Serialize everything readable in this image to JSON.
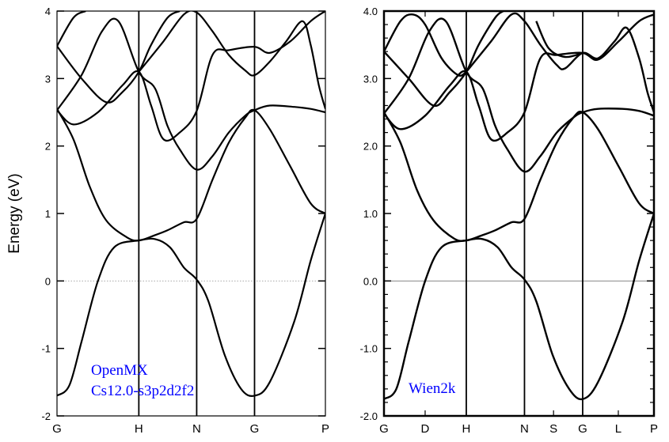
{
  "colors": {
    "line": "#000000",
    "annotation": "#0000ff",
    "zero_line_left": "#aaaaaa",
    "zero_line_right": "#888888"
  },
  "ylabel": "Energy (eV)",
  "chart_data": [
    {
      "type": "line",
      "ylabel": "Energy (eV)",
      "ylim": [
        -2,
        4
      ],
      "yticks": [
        "-2",
        "-1",
        "0",
        "1",
        "2",
        "3",
        "4"
      ],
      "kpoints": [
        {
          "label": "G",
          "x": 0
        },
        {
          "label": "H",
          "x": 1
        },
        {
          "label": "N",
          "x": 1.707
        },
        {
          "label": "G",
          "x": 2.414
        },
        {
          "label": "P",
          "x": 3.28
        }
      ],
      "annotation": [
        "OpenMX",
        "Cs12.0-s3p2d2f2"
      ],
      "series": [
        {
          "values": [
            [
              0,
              -1.7
            ],
            [
              0.15,
              -1.55
            ],
            [
              0.3,
              -0.9
            ],
            [
              0.5,
              0.0
            ],
            [
              0.7,
              0.5
            ],
            [
              1.0,
              0.6
            ],
            [
              1.2,
              0.62
            ],
            [
              1.38,
              0.5
            ],
            [
              1.55,
              0.2
            ],
            [
              1.707,
              0.02
            ],
            [
              1.85,
              -0.3
            ],
            [
              2.05,
              -1.1
            ],
            [
              2.25,
              -1.6
            ],
            [
              2.414,
              -1.7
            ],
            [
              2.6,
              -1.5
            ],
            [
              2.9,
              -0.6
            ],
            [
              3.1,
              0.3
            ],
            [
              3.28,
              1.0
            ]
          ]
        },
        {
          "values": [
            [
              0,
              2.55
            ],
            [
              0.2,
              2.1
            ],
            [
              0.4,
              1.4
            ],
            [
              0.6,
              0.9
            ],
            [
              0.85,
              0.65
            ],
            [
              1.0,
              0.6
            ],
            [
              1.2,
              0.68
            ],
            [
              1.35,
              0.75
            ],
            [
              1.55,
              0.87
            ],
            [
              1.707,
              0.92
            ],
            [
              1.9,
              1.5
            ],
            [
              2.1,
              2.05
            ],
            [
              2.3,
              2.42
            ],
            [
              2.414,
              2.53
            ],
            [
              2.6,
              2.25
            ],
            [
              2.85,
              1.7
            ],
            [
              3.1,
              1.15
            ],
            [
              3.28,
              1.0
            ]
          ]
        },
        {
          "values": [
            [
              0,
              2.53
            ],
            [
              0.2,
              2.32
            ],
            [
              0.5,
              2.5
            ],
            [
              0.8,
              2.9
            ],
            [
              1.0,
              3.1
            ],
            [
              1.15,
              2.6
            ],
            [
              1.3,
              2.1
            ],
            [
              1.5,
              2.2
            ],
            [
              1.707,
              2.52
            ],
            [
              1.9,
              3.35
            ],
            [
              2.1,
              3.42
            ],
            [
              2.414,
              3.47
            ],
            [
              2.6,
              3.38
            ],
            [
              2.85,
              3.55
            ],
            [
              3.1,
              3.85
            ],
            [
              3.28,
              4.0
            ]
          ]
        },
        {
          "values": [
            [
              0,
              2.53
            ],
            [
              0.3,
              3.05
            ],
            [
              0.55,
              3.7
            ],
            [
              0.75,
              3.85
            ],
            [
              1.0,
              3.1
            ],
            [
              1.2,
              2.85
            ],
            [
              1.35,
              2.3
            ],
            [
              1.5,
              1.95
            ],
            [
              1.707,
              1.65
            ],
            [
              1.9,
              1.85
            ],
            [
              2.1,
              2.2
            ],
            [
              2.3,
              2.45
            ],
            [
              2.414,
              2.53
            ],
            [
              2.6,
              2.6
            ],
            [
              2.9,
              2.58
            ],
            [
              3.1,
              2.55
            ],
            [
              3.28,
              2.5
            ]
          ]
        },
        {
          "values": [
            [
              0,
              3.48
            ],
            [
              0.3,
              3.0
            ],
            [
              0.6,
              2.65
            ],
            [
              0.8,
              2.8
            ],
            [
              1.0,
              3.1
            ],
            [
              1.15,
              3.5
            ],
            [
              1.35,
              3.9
            ],
            [
              1.5,
              4.0
            ]
          ]
        },
        {
          "values": [
            [
              0,
              3.48
            ],
            [
              0.2,
              3.9
            ],
            [
              0.35,
              4.0
            ]
          ]
        },
        {
          "values": [
            [
              1.0,
              3.1
            ],
            [
              1.3,
              3.55
            ],
            [
              1.55,
              3.95
            ],
            [
              1.707,
              3.98
            ],
            [
              1.9,
              3.7
            ],
            [
              2.1,
              3.35
            ],
            [
              2.3,
              3.12
            ],
            [
              2.414,
              3.05
            ],
            [
              2.6,
              3.25
            ],
            [
              2.8,
              3.55
            ],
            [
              3.0,
              3.85
            ],
            [
              3.1,
              3.5
            ],
            [
              3.2,
              2.9
            ],
            [
              3.28,
              2.55
            ]
          ]
        }
      ]
    },
    {
      "type": "line",
      "ylim": [
        -2.0,
        4.0
      ],
      "yticks": [
        "-2.0",
        "-1.0",
        "0.0",
        "1.0",
        "2.0",
        "3.0",
        "4.0"
      ],
      "kpoints": [
        {
          "label": "G",
          "x": 0
        },
        {
          "label": "D",
          "x": 0.5
        },
        {
          "label": "H",
          "x": 1
        },
        {
          "label": "N",
          "x": 1.707
        },
        {
          "label": "S",
          "x": 2.06
        },
        {
          "label": "G",
          "x": 2.414
        },
        {
          "label": "L",
          "x": 2.847
        },
        {
          "label": "P",
          "x": 3.28
        }
      ],
      "annotation": [
        "Wien2k"
      ],
      "series": [
        {
          "values": [
            [
              0,
              -1.75
            ],
            [
              0.15,
              -1.6
            ],
            [
              0.3,
              -0.9
            ],
            [
              0.5,
              0.0
            ],
            [
              0.7,
              0.5
            ],
            [
              1.0,
              0.6
            ],
            [
              1.2,
              0.62
            ],
            [
              1.38,
              0.5
            ],
            [
              1.55,
              0.2
            ],
            [
              1.707,
              0.02
            ],
            [
              1.85,
              -0.3
            ],
            [
              2.05,
              -1.1
            ],
            [
              2.25,
              -1.6
            ],
            [
              2.414,
              -1.75
            ],
            [
              2.6,
              -1.5
            ],
            [
              2.9,
              -0.6
            ],
            [
              3.1,
              0.3
            ],
            [
              3.28,
              1.0
            ]
          ]
        },
        {
          "values": [
            [
              0,
              2.5
            ],
            [
              0.2,
              2.05
            ],
            [
              0.4,
              1.35
            ],
            [
              0.6,
              0.9
            ],
            [
              0.85,
              0.63
            ],
            [
              1.0,
              0.6
            ],
            [
              1.2,
              0.68
            ],
            [
              1.35,
              0.75
            ],
            [
              1.55,
              0.87
            ],
            [
              1.707,
              0.92
            ],
            [
              1.9,
              1.5
            ],
            [
              2.1,
              2.05
            ],
            [
              2.3,
              2.42
            ],
            [
              2.414,
              2.5
            ],
            [
              2.6,
              2.25
            ],
            [
              2.85,
              1.7
            ],
            [
              3.1,
              1.15
            ],
            [
              3.28,
              1.0
            ]
          ]
        },
        {
          "values": [
            [
              0,
              2.48
            ],
            [
              0.2,
              2.25
            ],
            [
              0.5,
              2.45
            ],
            [
              0.8,
              2.9
            ],
            [
              1.0,
              3.1
            ],
            [
              1.15,
              2.6
            ],
            [
              1.3,
              2.1
            ],
            [
              1.5,
              2.2
            ],
            [
              1.707,
              2.5
            ],
            [
              1.9,
              3.3
            ],
            [
              2.1,
              3.35
            ],
            [
              2.414,
              3.38
            ],
            [
              2.6,
              3.28
            ],
            [
              2.85,
              3.55
            ],
            [
              3.1,
              3.85
            ],
            [
              3.28,
              3.95
            ]
          ]
        },
        {
          "values": [
            [
              0,
              2.48
            ],
            [
              0.3,
              3.0
            ],
            [
              0.55,
              3.7
            ],
            [
              0.75,
              3.85
            ],
            [
              1.0,
              3.1
            ],
            [
              1.2,
              2.85
            ],
            [
              1.35,
              2.3
            ],
            [
              1.5,
              1.95
            ],
            [
              1.707,
              1.62
            ],
            [
              1.9,
              1.85
            ],
            [
              2.1,
              2.2
            ],
            [
              2.3,
              2.42
            ],
            [
              2.414,
              2.5
            ],
            [
              2.6,
              2.55
            ],
            [
              2.9,
              2.55
            ],
            [
              3.1,
              2.52
            ],
            [
              3.28,
              2.45
            ]
          ]
        },
        {
          "values": [
            [
              0,
              3.4
            ],
            [
              0.3,
              3.0
            ],
            [
              0.6,
              2.6
            ],
            [
              0.8,
              2.8
            ],
            [
              1.0,
              3.1
            ],
            [
              1.15,
              3.5
            ],
            [
              1.35,
              3.9
            ],
            [
              1.45,
              4.0
            ]
          ]
        },
        {
          "values": [
            [
              0,
              3.4
            ],
            [
              0.2,
              3.85
            ],
            [
              0.35,
              3.95
            ],
            [
              0.5,
              3.8
            ],
            [
              0.7,
              3.3
            ],
            [
              0.9,
              3.05
            ],
            [
              1.0,
              3.1
            ]
          ]
        },
        {
          "values": [
            [
              1.0,
              3.1
            ],
            [
              1.3,
              3.55
            ],
            [
              1.55,
              3.95
            ],
            [
              1.707,
              3.85
            ],
            [
              1.9,
              3.5
            ],
            [
              2.1,
              3.2
            ],
            [
              2.2,
              3.15
            ],
            [
              2.414,
              3.38
            ],
            [
              2.6,
              3.3
            ],
            [
              2.8,
              3.55
            ],
            [
              2.95,
              3.75
            ],
            [
              3.1,
              3.3
            ],
            [
              3.2,
              2.8
            ],
            [
              3.28,
              2.5
            ]
          ]
        },
        {
          "values": [
            [
              1.85,
              3.85
            ],
            [
              2.0,
              3.45
            ],
            [
              2.2,
              3.32
            ],
            [
              2.414,
              3.38
            ]
          ]
        }
      ]
    }
  ]
}
